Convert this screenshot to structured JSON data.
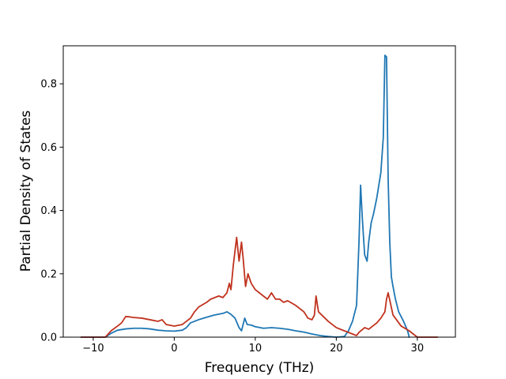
{
  "chart_data": {
    "type": "line",
    "title": "",
    "xlabel": "Frequency (THz)",
    "ylabel": "Partial Density of States",
    "xlim": [
      -13.7,
      34.7
    ],
    "ylim": [
      0,
      0.92
    ],
    "xticks": [
      -10,
      0,
      10,
      20,
      30
    ],
    "xtick_labels": [
      "−10",
      "0",
      "10",
      "20",
      "30"
    ],
    "yticks": [
      0.0,
      0.2,
      0.4,
      0.6,
      0.8
    ],
    "ytick_labels": [
      "0.0",
      "0.2",
      "0.4",
      "0.6",
      "0.8"
    ],
    "grid": false,
    "legend": "none",
    "series": [
      {
        "color": "#1f77b4",
        "x": [
          -11.5,
          -8.5,
          -7.8,
          -7,
          -6,
          -5,
          -4,
          -3,
          -2,
          -1,
          0,
          1,
          1.5,
          2,
          3,
          4,
          5,
          6,
          6.5,
          7,
          7.5,
          8,
          8.3,
          8.7,
          9,
          9.5,
          10,
          11,
          12,
          13,
          14,
          15,
          16,
          17,
          18,
          19,
          20,
          21,
          21.5,
          22,
          22.5,
          22.8,
          23,
          23.2,
          23.5,
          23.8,
          24,
          24.3,
          24.6,
          25,
          25.5,
          25.8,
          26,
          26.2,
          26.4,
          26.6,
          26.8,
          27,
          27.3,
          27.7,
          28.3,
          28.8,
          29
        ],
        "y": [
          0.0,
          0.0,
          0.012,
          0.022,
          0.026,
          0.028,
          0.028,
          0.026,
          0.022,
          0.02,
          0.019,
          0.022,
          0.03,
          0.045,
          0.055,
          0.063,
          0.07,
          0.075,
          0.08,
          0.072,
          0.06,
          0.03,
          0.02,
          0.06,
          0.04,
          0.038,
          0.033,
          0.028,
          0.03,
          0.028,
          0.025,
          0.02,
          0.016,
          0.01,
          0.005,
          0.002,
          0.0,
          0.002,
          0.02,
          0.05,
          0.1,
          0.3,
          0.48,
          0.38,
          0.26,
          0.24,
          0.3,
          0.36,
          0.39,
          0.44,
          0.52,
          0.63,
          0.89,
          0.885,
          0.5,
          0.3,
          0.19,
          0.16,
          0.12,
          0.08,
          0.05,
          0.02,
          0.0
        ]
      },
      {
        "color": "#c0321e",
        "x": [
          -11.5,
          -8.5,
          -7.8,
          -7,
          -6.5,
          -6,
          -5.5,
          -5,
          -4,
          -3,
          -2,
          -1.5,
          -1,
          0,
          1,
          1.5,
          2,
          2.5,
          3,
          4,
          4.5,
          5,
          5.5,
          6,
          6.5,
          6.8,
          7,
          7.3,
          7.7,
          8,
          8.3,
          8.5,
          8.8,
          9.1,
          9.5,
          10,
          11,
          11.5,
          12,
          12.5,
          13,
          13.5,
          14,
          15,
          15.5,
          16,
          16.5,
          17,
          17.3,
          17.5,
          17.8,
          18.2,
          19,
          20,
          21,
          22,
          22.5,
          22.8,
          23.5,
          24,
          24.5,
          25,
          25.5,
          26,
          26.2,
          26.4,
          27,
          28,
          29,
          29.5,
          30,
          32.5
        ],
        "y": [
          0.0,
          0.0,
          0.02,
          0.035,
          0.045,
          0.065,
          0.064,
          0.062,
          0.06,
          0.055,
          0.05,
          0.055,
          0.04,
          0.035,
          0.04,
          0.05,
          0.06,
          0.08,
          0.095,
          0.11,
          0.12,
          0.125,
          0.13,
          0.125,
          0.14,
          0.17,
          0.15,
          0.23,
          0.315,
          0.24,
          0.3,
          0.25,
          0.16,
          0.2,
          0.17,
          0.15,
          0.13,
          0.12,
          0.14,
          0.12,
          0.12,
          0.11,
          0.115,
          0.1,
          0.09,
          0.08,
          0.06,
          0.055,
          0.07,
          0.13,
          0.08,
          0.07,
          0.05,
          0.03,
          0.02,
          0.01,
          0.005,
          0.015,
          0.03,
          0.025,
          0.035,
          0.045,
          0.06,
          0.08,
          0.12,
          0.14,
          0.07,
          0.035,
          0.02,
          0.01,
          0.0,
          0.0
        ]
      }
    ]
  }
}
